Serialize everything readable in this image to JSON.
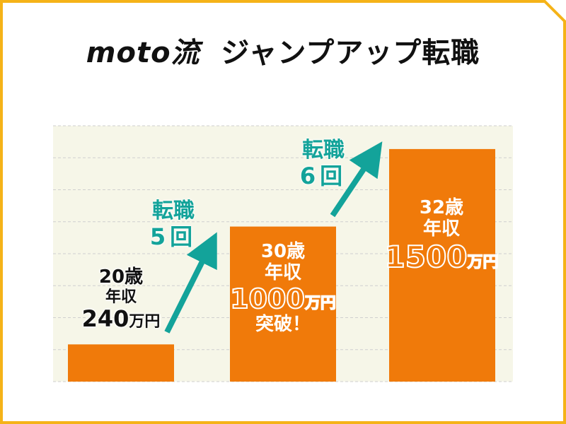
{
  "title": {
    "latin": "moto流",
    "jp": "ジャンプアップ転職"
  },
  "colors": {
    "frame": "#f5b318",
    "bar": "#f07a0a",
    "arrow": "#13a39a",
    "plot_bg": "#f6f6e8",
    "grid": "#cfcfcf"
  },
  "chart_data": {
    "type": "bar",
    "title": "moto流 ジャンプアップ転職",
    "categories": [
      "20歳",
      "30歳",
      "32歳"
    ],
    "values": [
      240,
      1000,
      1500
    ],
    "unit": "万円",
    "ylim": [
      0,
      1650
    ],
    "grid": true,
    "labels": [
      {
        "age": "20歳",
        "caption": "年収",
        "amount": "240",
        "unit": "万円",
        "note": ""
      },
      {
        "age": "30歳",
        "caption": "年収",
        "amount": "1000",
        "unit": "万円",
        "note": "突破！"
      },
      {
        "age": "32歳",
        "caption": "年収",
        "amount": "1500",
        "unit": "万円",
        "note": ""
      }
    ],
    "annotations": [
      {
        "line1": "転職",
        "line2": "5回"
      },
      {
        "line1": "転職",
        "line2": "6回"
      }
    ]
  }
}
